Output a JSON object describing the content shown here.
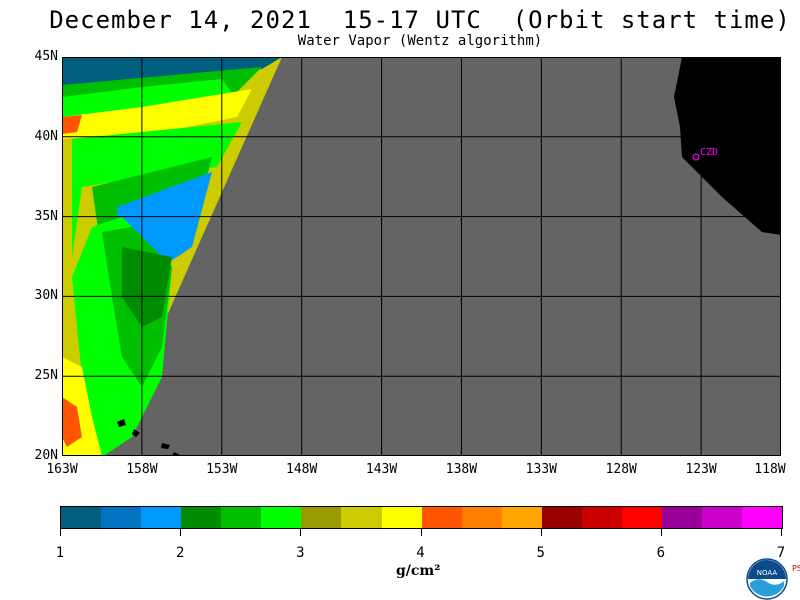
{
  "title": "December 14, 2021  15-17 UTC  (Orbit start time)",
  "subtitle": "Water Vapor (Wentz algorithm)",
  "lat_labels": [
    "45N",
    "40N",
    "35N",
    "30N",
    "25N",
    "20N"
  ],
  "lon_labels": [
    "163W",
    "158W",
    "153W",
    "148W",
    "143W",
    "138W",
    "133W",
    "128W",
    "123W",
    "118W"
  ],
  "station_label": "CZD",
  "colorbar": {
    "colors": [
      "#005f7f",
      "#0072bf",
      "#0099ff",
      "#008c00",
      "#00bf00",
      "#00ff00",
      "#999900",
      "#cccc00",
      "#ffff00",
      "#ff5500",
      "#ff7f00",
      "#ffa500",
      "#990000",
      "#cc0000",
      "#ff0000",
      "#990099",
      "#cc00cc",
      "#ff00ff"
    ],
    "tick_labels": [
      "1",
      "2",
      "3",
      "4",
      "5",
      "6",
      "7"
    ],
    "unit": "g/cm²"
  },
  "colors": {
    "no_data": "#646464",
    "land": "#000000",
    "grid": "#000000"
  },
  "logo": {
    "text": "NOAA",
    "side_text": "PSL"
  }
}
